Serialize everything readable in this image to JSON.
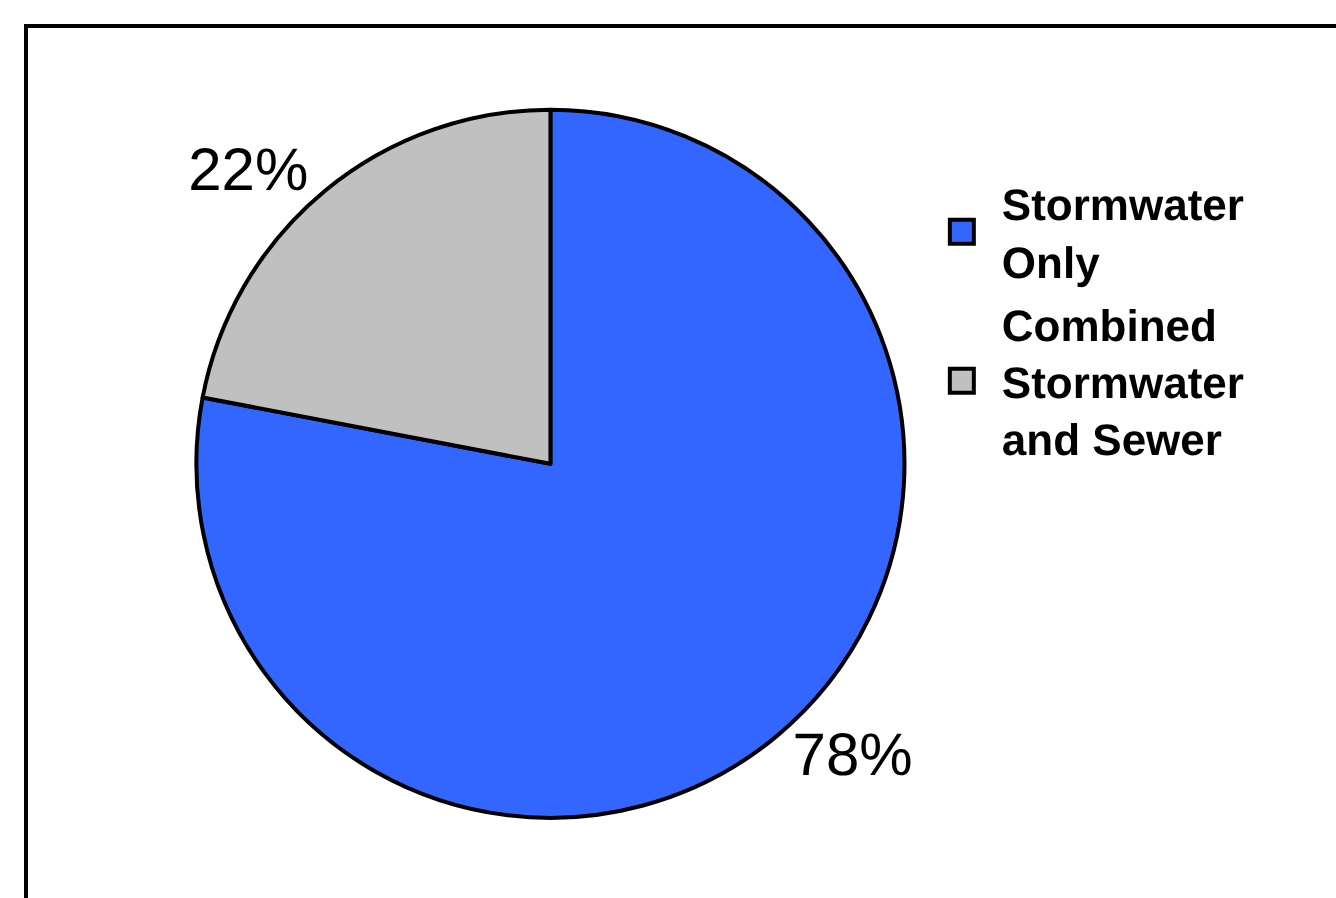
{
  "chart_data": {
    "type": "pie",
    "categories": [
      "Stormwater Only",
      "Combined Stormwater and Sewer"
    ],
    "values": [
      78,
      22
    ],
    "colors": [
      "#3366ff",
      "#c0c0c0"
    ],
    "value_labels": [
      "78%",
      "22%"
    ],
    "legend": "right"
  }
}
